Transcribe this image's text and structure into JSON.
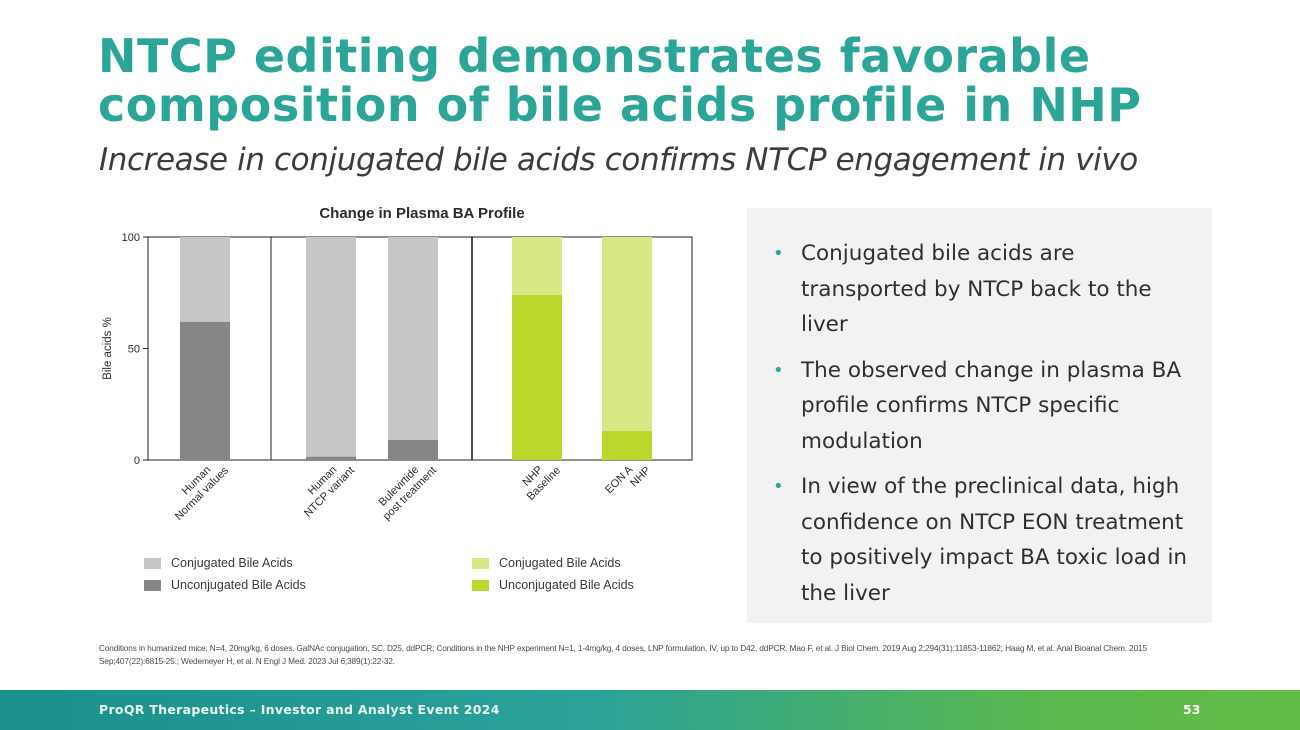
{
  "slide": {
    "title": "NTCP editing demonstrates favorable composition of bile acids profile in NHP",
    "subtitle": "Increase in conjugated bile acids confirms NTCP engagement in vivo"
  },
  "chart_data": {
    "type": "bar",
    "stacked": true,
    "title": "Change in Plasma BA Profile",
    "ylabel": "Bile acids %",
    "xlabel": "",
    "ylim": [
      0,
      100
    ],
    "yticks": [
      0,
      50,
      100
    ],
    "categories": [
      [
        "Human",
        "Normal values"
      ],
      [
        "Human",
        "NTCP variant"
      ],
      [
        "Bulevirtide",
        "post treatment"
      ],
      [
        "NHP",
        "Baseline"
      ],
      [
        "EON A",
        "NHP"
      ]
    ],
    "panels": [
      [
        0
      ],
      [
        1,
        2
      ],
      [
        3,
        4
      ]
    ],
    "series": [
      {
        "name": "Unconjugated Bile Acids",
        "values": [
          62,
          1.5,
          9,
          74,
          13
        ]
      },
      {
        "name": "Conjugated Bile Acids",
        "values": [
          38,
          98.5,
          91,
          26,
          87
        ]
      }
    ],
    "colors": {
      "human_unconjugated": "#868686",
      "human_conjugated": "#c6c6c6",
      "nhp_unconjugated": "#bcd62e",
      "nhp_conjugated": "#d9e885"
    },
    "legend": {
      "human": [
        "Conjugated Bile Acids",
        "Unconjugated Bile Acids"
      ],
      "nhp": [
        "Conjugated Bile Acids",
        "Unconjugated Bile Acids"
      ]
    }
  },
  "bullets": [
    "Conjugated bile acids are transported by NTCP back to the liver",
    "The observed change in plasma BA profile confirms NTCP specific modulation",
    "In view of the preclinical data, high confidence on NTCP EON treatment to positively impact BA toxic load in the liver"
  ],
  "footnote": "Conditions in humanized mice: N=4, 20mg/kg, 6 doses, GalNAc conjugation, SC, D25, ddPCR; Conditions in the NHP experiment N=1, 1-4mg/kg, 4 doses, LNP formulation, IV, up to D42, ddPCR. Mao F, et al. J Biol Chem. 2019 Aug 2;294(31):11853-11862; Haag M, et al.  Anal Bioanal Chem. 2015 Sep;407(22):6815-25.; Wedemeyer H, et al. N Engl J Med. 2023 Jul 6;389(1):22-32.",
  "footer": {
    "text": "ProQR Therapeutics – Investor and Analyst Event 2024",
    "page": "53"
  }
}
